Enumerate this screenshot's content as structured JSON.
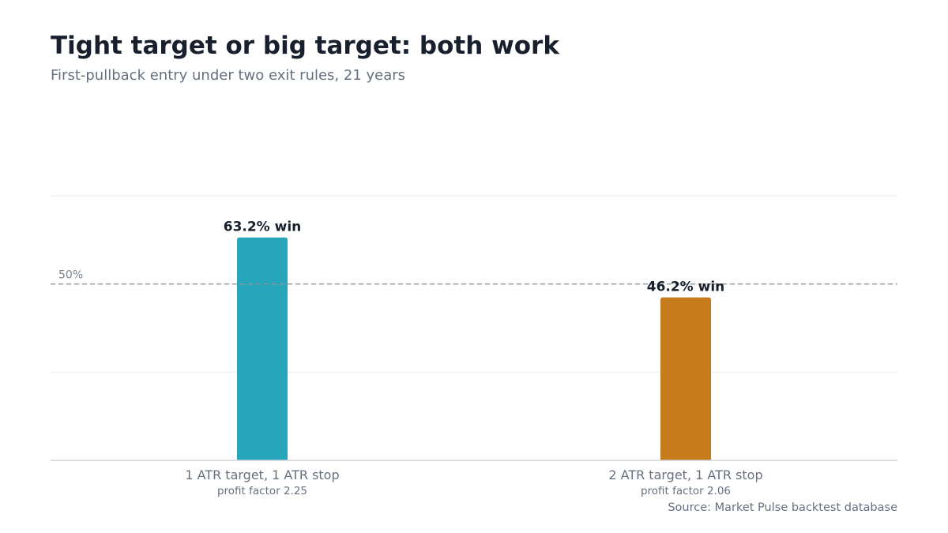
{
  "chart_data": {
    "type": "bar",
    "title": "Tight target or big target: both work",
    "subtitle": "First-pullback entry under two exit rules, 21 years",
    "categories": [
      "1 ATR target, 1 ATR stop",
      "2 ATR target, 1 ATR stop"
    ],
    "category_notes": [
      "profit factor 2.25",
      "profit factor 2.06"
    ],
    "values": [
      63.2,
      46.2
    ],
    "data_labels": [
      "63.2% win",
      "46.2% win"
    ],
    "bar_colors": [
      "#27a5bb",
      "#c77c1c"
    ],
    "reference_line": {
      "value": 50,
      "label": "50%"
    },
    "ylim": [
      0,
      75
    ],
    "yticks": [
      0,
      25,
      50,
      75
    ],
    "grid": true,
    "xlabel": "",
    "ylabel": "",
    "source": "Source: Market Pulse backtest database"
  }
}
